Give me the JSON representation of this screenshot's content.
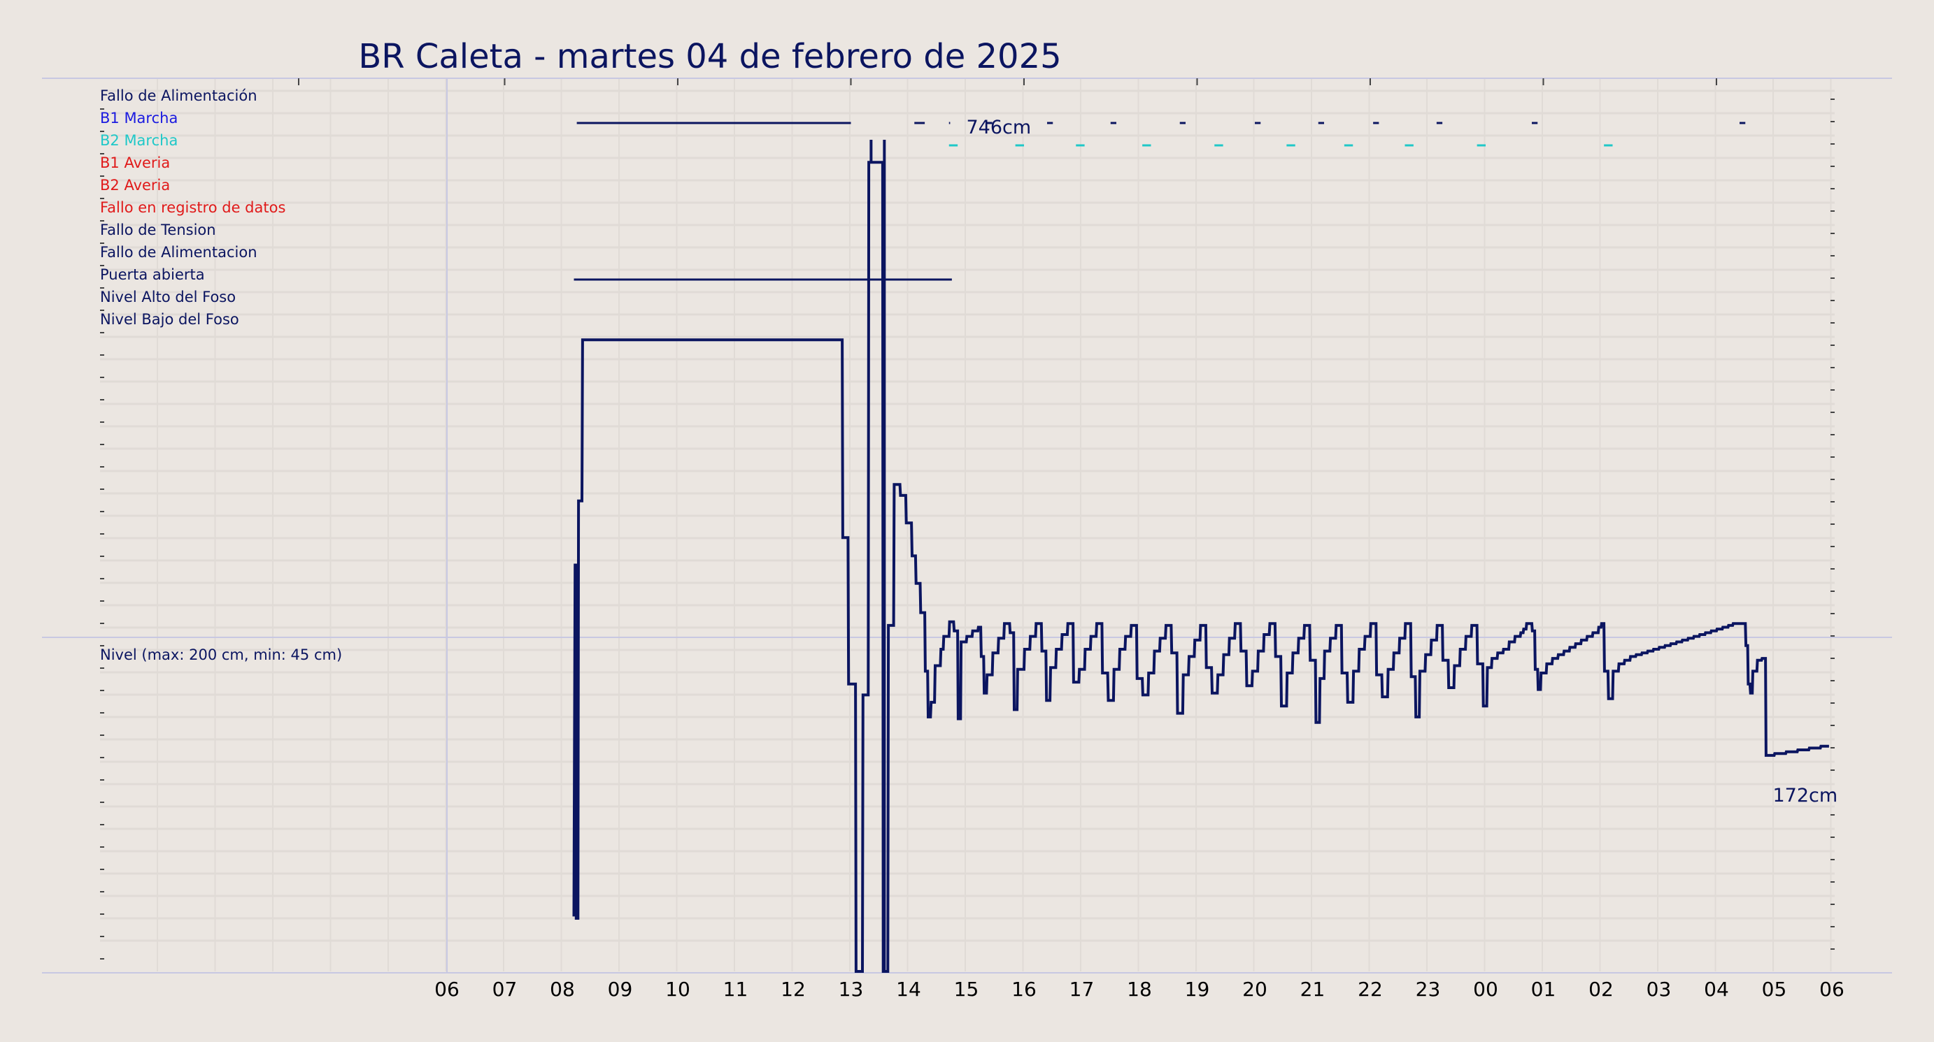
{
  "colors": {
    "background": "#ebe6e1",
    "grid": "#e0dbd6",
    "frame": "#c8c8e2",
    "line": "#0b1560",
    "navy": "#0b1560",
    "blue": "#1a1ae0",
    "cyan": "#1fc8c8",
    "red": "#e01a1a"
  },
  "chart_data": {
    "type": "line",
    "title": "BR Caleta   -   martes 04 de febrero de 2025",
    "x_ticks": [
      "06",
      "07",
      "08",
      "09",
      "10",
      "11",
      "12",
      "13",
      "14",
      "15",
      "16",
      "17",
      "18",
      "19",
      "20",
      "21",
      "22",
      "23",
      "00",
      "01",
      "02",
      "03",
      "04",
      "05",
      "06"
    ],
    "x_range_hours": [
      0,
      30
    ],
    "status_labels": [
      {
        "text": "Fallo de Alimentación",
        "color": "navy"
      },
      {
        "text": "B1 Marcha",
        "color": "blue"
      },
      {
        "text": "B2 Marcha",
        "color": "cyan"
      },
      {
        "text": "B1 Averia",
        "color": "red"
      },
      {
        "text": "B2 Averia",
        "color": "red"
      },
      {
        "text": "Fallo en registro de datos",
        "color": "red"
      },
      {
        "text": "Fallo de Tension",
        "color": "navy"
      },
      {
        "text": "Fallo de Alimentacion",
        "color": "navy"
      },
      {
        "text": "Puerta abierta",
        "color": "navy"
      },
      {
        "text": "Nivel Alto del Foso",
        "color": "navy"
      },
      {
        "text": "Nivel Bajo del Foso",
        "color": "navy"
      }
    ],
    "level_label": "Nivel (max: 200 cm, min: 45 cm)",
    "annotations": [
      {
        "text": "746cm",
        "x": 13.0
      },
      {
        "text": "172cm",
        "x": 29.0
      }
    ],
    "b1_marcha_runs": [
      [
        8.25,
        13.0
      ],
      [
        14.1,
        14.28
      ],
      [
        14.7,
        14.72
      ],
      [
        15.35,
        15.45
      ],
      [
        16.4,
        16.5
      ],
      [
        17.5,
        17.6
      ],
      [
        18.7,
        18.8
      ],
      [
        20.0,
        20.1
      ],
      [
        21.1,
        21.2
      ],
      [
        22.05,
        22.15
      ],
      [
        23.15,
        23.25
      ],
      [
        24.8,
        24.9
      ],
      [
        28.4,
        28.5
      ]
    ],
    "b2_marcha_runs": [
      [
        14.7,
        14.85
      ],
      [
        15.85,
        16.0
      ],
      [
        16.9,
        17.05
      ],
      [
        18.05,
        18.2
      ],
      [
        19.3,
        19.45
      ],
      [
        20.55,
        20.7
      ],
      [
        21.55,
        21.7
      ],
      [
        22.6,
        22.75
      ],
      [
        23.85,
        24.0
      ],
      [
        26.05,
        26.2
      ]
    ],
    "puerta_abierta_run": [
      8.2,
      14.75
    ],
    "level_series": [
      [
        8.2,
        30
      ],
      [
        8.22,
        222
      ],
      [
        8.23,
        222
      ],
      [
        8.24,
        29
      ],
      [
        8.27,
        29
      ],
      [
        8.28,
        257
      ],
      [
        8.34,
        257
      ],
      [
        8.35,
        345
      ],
      [
        12.85,
        345
      ],
      [
        12.86,
        237
      ],
      [
        12.95,
        237
      ],
      [
        12.96,
        157
      ],
      [
        13.08,
        157
      ],
      [
        13.09,
        0
      ],
      [
        13.2,
        0
      ],
      [
        13.21,
        151
      ],
      [
        13.3,
        151
      ],
      [
        13.31,
        442
      ],
      [
        13.35,
        442
      ],
      [
        13.36,
        442
      ],
      [
        13.55,
        442
      ],
      [
        13.56,
        0
      ],
      [
        13.64,
        0
      ],
      [
        13.65,
        189
      ],
      [
        13.74,
        189
      ],
      [
        13.75,
        266
      ],
      [
        13.85,
        266
      ],
      [
        13.86,
        260
      ],
      [
        13.95,
        260
      ],
      [
        13.96,
        245
      ],
      [
        14.05,
        245
      ],
      [
        14.06,
        227
      ],
      [
        14.12,
        227
      ],
      [
        14.13,
        212
      ],
      [
        14.2,
        212
      ],
      [
        14.21,
        196
      ],
      [
        14.28,
        196
      ],
      [
        14.29,
        164
      ],
      [
        14.33,
        164
      ],
      [
        14.34,
        139
      ],
      [
        14.38,
        139
      ],
      [
        14.39,
        147
      ],
      [
        14.45,
        147
      ],
      [
        14.46,
        167
      ],
      [
        14.55,
        167
      ],
      [
        14.56,
        176
      ],
      [
        14.6,
        176
      ],
      [
        14.61,
        183
      ],
      [
        14.7,
        183
      ],
      [
        14.71,
        191
      ],
      [
        14.78,
        191
      ],
      [
        14.79,
        186
      ],
      [
        14.85,
        186
      ],
      [
        14.86,
        138
      ],
      [
        14.9,
        138
      ],
      [
        14.91,
        180
      ],
      [
        15.0,
        180
      ],
      [
        15.01,
        183
      ],
      [
        15.1,
        183
      ],
      [
        15.11,
        186
      ],
      [
        15.2,
        186
      ],
      [
        15.21,
        188
      ],
      [
        15.25,
        188
      ],
      [
        15.26,
        172
      ],
      [
        15.3,
        172
      ],
      [
        15.31,
        152
      ],
      [
        15.35,
        152
      ],
      [
        15.36,
        162
      ],
      [
        15.45,
        162
      ],
      [
        15.46,
        174
      ],
      [
        15.55,
        174
      ],
      [
        15.56,
        182
      ],
      [
        15.65,
        182
      ],
      [
        15.66,
        190
      ],
      [
        15.75,
        190
      ],
      [
        15.76,
        185
      ],
      [
        15.82,
        185
      ],
      [
        15.83,
        143
      ],
      [
        15.88,
        143
      ],
      [
        15.89,
        165
      ],
      [
        16.0,
        165
      ],
      [
        16.01,
        176
      ],
      [
        16.1,
        176
      ],
      [
        16.11,
        183
      ],
      [
        16.2,
        183
      ],
      [
        16.21,
        190
      ],
      [
        16.3,
        190
      ],
      [
        16.31,
        175
      ],
      [
        16.38,
        175
      ],
      [
        16.39,
        148
      ],
      [
        16.45,
        148
      ],
      [
        16.46,
        166
      ],
      [
        16.55,
        166
      ],
      [
        16.56,
        176
      ],
      [
        16.65,
        176
      ],
      [
        16.66,
        184
      ],
      [
        16.75,
        184
      ],
      [
        16.76,
        190
      ],
      [
        16.85,
        190
      ],
      [
        16.86,
        158
      ],
      [
        16.95,
        158
      ],
      [
        16.96,
        165
      ],
      [
        17.05,
        165
      ],
      [
        17.06,
        176
      ],
      [
        17.15,
        176
      ],
      [
        17.16,
        183
      ],
      [
        17.25,
        183
      ],
      [
        17.26,
        190
      ],
      [
        17.35,
        190
      ],
      [
        17.36,
        163
      ],
      [
        17.45,
        163
      ],
      [
        17.46,
        148
      ],
      [
        17.55,
        148
      ],
      [
        17.56,
        165
      ],
      [
        17.65,
        165
      ],
      [
        17.66,
        176
      ],
      [
        17.75,
        176
      ],
      [
        17.76,
        183
      ],
      [
        17.85,
        183
      ],
      [
        17.86,
        189
      ],
      [
        17.95,
        189
      ],
      [
        17.96,
        160
      ],
      [
        18.05,
        160
      ],
      [
        18.06,
        151
      ],
      [
        18.15,
        151
      ],
      [
        18.16,
        163
      ],
      [
        18.25,
        163
      ],
      [
        18.26,
        175
      ],
      [
        18.35,
        175
      ],
      [
        18.36,
        182
      ],
      [
        18.45,
        182
      ],
      [
        18.46,
        189
      ],
      [
        18.55,
        189
      ],
      [
        18.56,
        174
      ],
      [
        18.65,
        174
      ],
      [
        18.66,
        141
      ],
      [
        18.75,
        141
      ],
      [
        18.76,
        162
      ],
      [
        18.85,
        162
      ],
      [
        18.86,
        172
      ],
      [
        18.95,
        172
      ],
      [
        18.96,
        181
      ],
      [
        19.05,
        181
      ],
      [
        19.06,
        189
      ],
      [
        19.15,
        189
      ],
      [
        19.16,
        166
      ],
      [
        19.25,
        166
      ],
      [
        19.26,
        152
      ],
      [
        19.35,
        152
      ],
      [
        19.36,
        162
      ],
      [
        19.45,
        162
      ],
      [
        19.46,
        173
      ],
      [
        19.55,
        173
      ],
      [
        19.56,
        182
      ],
      [
        19.65,
        182
      ],
      [
        19.66,
        190
      ],
      [
        19.75,
        190
      ],
      [
        19.76,
        175
      ],
      [
        19.85,
        175
      ],
      [
        19.86,
        156
      ],
      [
        19.95,
        156
      ],
      [
        19.96,
        164
      ],
      [
        20.05,
        164
      ],
      [
        20.06,
        175
      ],
      [
        20.15,
        175
      ],
      [
        20.16,
        184
      ],
      [
        20.25,
        184
      ],
      [
        20.26,
        190
      ],
      [
        20.35,
        190
      ],
      [
        20.36,
        172
      ],
      [
        20.45,
        172
      ],
      [
        20.46,
        145
      ],
      [
        20.55,
        145
      ],
      [
        20.56,
        163
      ],
      [
        20.65,
        163
      ],
      [
        20.66,
        174
      ],
      [
        20.75,
        174
      ],
      [
        20.76,
        182
      ],
      [
        20.85,
        182
      ],
      [
        20.86,
        189
      ],
      [
        20.95,
        189
      ],
      [
        20.96,
        170
      ],
      [
        21.05,
        170
      ],
      [
        21.06,
        136
      ],
      [
        21.12,
        136
      ],
      [
        21.13,
        160
      ],
      [
        21.2,
        160
      ],
      [
        21.21,
        175
      ],
      [
        21.3,
        175
      ],
      [
        21.31,
        182
      ],
      [
        21.4,
        182
      ],
      [
        21.41,
        189
      ],
      [
        21.5,
        189
      ],
      [
        21.51,
        163
      ],
      [
        21.6,
        163
      ],
      [
        21.61,
        147
      ],
      [
        21.7,
        147
      ],
      [
        21.71,
        164
      ],
      [
        21.8,
        164
      ],
      [
        21.81,
        176
      ],
      [
        21.9,
        176
      ],
      [
        21.91,
        183
      ],
      [
        22.0,
        183
      ],
      [
        22.01,
        190
      ],
      [
        22.1,
        190
      ],
      [
        22.11,
        162
      ],
      [
        22.2,
        162
      ],
      [
        22.21,
        150
      ],
      [
        22.3,
        150
      ],
      [
        22.31,
        165
      ],
      [
        22.4,
        165
      ],
      [
        22.41,
        174
      ],
      [
        22.5,
        174
      ],
      [
        22.51,
        182
      ],
      [
        22.6,
        182
      ],
      [
        22.61,
        190
      ],
      [
        22.7,
        190
      ],
      [
        22.71,
        161
      ],
      [
        22.78,
        161
      ],
      [
        22.79,
        139
      ],
      [
        22.85,
        139
      ],
      [
        22.86,
        164
      ],
      [
        22.95,
        164
      ],
      [
        22.96,
        173
      ],
      [
        23.05,
        173
      ],
      [
        23.06,
        181
      ],
      [
        23.15,
        181
      ],
      [
        23.16,
        189
      ],
      [
        23.25,
        189
      ],
      [
        23.26,
        170
      ],
      [
        23.35,
        170
      ],
      [
        23.36,
        155
      ],
      [
        23.45,
        155
      ],
      [
        23.46,
        167
      ],
      [
        23.55,
        167
      ],
      [
        23.56,
        176
      ],
      [
        23.65,
        176
      ],
      [
        23.66,
        183
      ],
      [
        23.75,
        183
      ],
      [
        23.76,
        189
      ],
      [
        23.85,
        189
      ],
      [
        23.86,
        168
      ],
      [
        23.95,
        168
      ],
      [
        23.96,
        145
      ],
      [
        24.02,
        145
      ],
      [
        24.03,
        166
      ],
      [
        24.1,
        166
      ],
      [
        24.11,
        171
      ],
      [
        24.2,
        171
      ],
      [
        24.21,
        174
      ],
      [
        24.3,
        174
      ],
      [
        24.31,
        176
      ],
      [
        24.4,
        176
      ],
      [
        24.41,
        180
      ],
      [
        24.5,
        180
      ],
      [
        24.51,
        183
      ],
      [
        24.6,
        183
      ],
      [
        24.61,
        185
      ],
      [
        24.65,
        185
      ],
      [
        24.66,
        187
      ],
      [
        24.7,
        187
      ],
      [
        24.71,
        190
      ],
      [
        24.8,
        190
      ],
      [
        24.81,
        186
      ],
      [
        24.85,
        186
      ],
      [
        24.86,
        165
      ],
      [
        24.9,
        165
      ],
      [
        24.91,
        154
      ],
      [
        24.95,
        154
      ],
      [
        24.96,
        163
      ],
      [
        25.05,
        163
      ],
      [
        25.06,
        168
      ],
      [
        25.15,
        168
      ],
      [
        25.16,
        171
      ],
      [
        25.25,
        171
      ],
      [
        25.26,
        173
      ],
      [
        25.35,
        173
      ],
      [
        25.36,
        175
      ],
      [
        25.45,
        175
      ],
      [
        25.46,
        177
      ],
      [
        25.55,
        177
      ],
      [
        25.56,
        179
      ],
      [
        25.65,
        179
      ],
      [
        25.66,
        181
      ],
      [
        25.75,
        181
      ],
      [
        25.76,
        183
      ],
      [
        25.85,
        183
      ],
      [
        25.86,
        185
      ],
      [
        25.95,
        185
      ],
      [
        25.96,
        188
      ],
      [
        26.0,
        188
      ],
      [
        26.01,
        190
      ],
      [
        26.05,
        190
      ],
      [
        26.06,
        164
      ],
      [
        26.12,
        164
      ],
      [
        26.13,
        149
      ],
      [
        26.2,
        149
      ],
      [
        26.21,
        164
      ],
      [
        26.3,
        164
      ],
      [
        26.31,
        168
      ],
      [
        26.4,
        168
      ],
      [
        26.41,
        170
      ],
      [
        26.5,
        170
      ],
      [
        26.51,
        172
      ],
      [
        26.6,
        172
      ],
      [
        26.61,
        173
      ],
      [
        26.7,
        173
      ],
      [
        26.71,
        174
      ],
      [
        26.8,
        174
      ],
      [
        26.81,
        175
      ],
      [
        26.9,
        175
      ],
      [
        26.91,
        176
      ],
      [
        27.0,
        176
      ],
      [
        27.01,
        177
      ],
      [
        27.1,
        177
      ],
      [
        27.11,
        178
      ],
      [
        27.2,
        178
      ],
      [
        27.21,
        179
      ],
      [
        27.3,
        179
      ],
      [
        27.31,
        180
      ],
      [
        27.4,
        180
      ],
      [
        27.41,
        181
      ],
      [
        27.5,
        181
      ],
      [
        27.51,
        182
      ],
      [
        27.6,
        182
      ],
      [
        27.61,
        183
      ],
      [
        27.7,
        183
      ],
      [
        27.71,
        184
      ],
      [
        27.8,
        184
      ],
      [
        27.81,
        185
      ],
      [
        27.9,
        185
      ],
      [
        27.91,
        186
      ],
      [
        28.0,
        186
      ],
      [
        28.01,
        187
      ],
      [
        28.1,
        187
      ],
      [
        28.11,
        188
      ],
      [
        28.2,
        188
      ],
      [
        28.21,
        189
      ],
      [
        28.28,
        189
      ],
      [
        28.29,
        190
      ],
      [
        28.5,
        190
      ],
      [
        28.51,
        178
      ],
      [
        28.54,
        178
      ],
      [
        28.55,
        157
      ],
      [
        28.58,
        157
      ],
      [
        28.59,
        152
      ],
      [
        28.62,
        152
      ],
      [
        28.63,
        164
      ],
      [
        28.7,
        164
      ],
      [
        28.71,
        170
      ],
      [
        28.78,
        170
      ],
      [
        28.79,
        171
      ],
      [
        28.85,
        171
      ],
      [
        28.86,
        118
      ],
      [
        29.0,
        118
      ],
      [
        29.01,
        119
      ],
      [
        29.2,
        119
      ],
      [
        29.21,
        120
      ],
      [
        29.4,
        120
      ],
      [
        29.41,
        121
      ],
      [
        29.6,
        121
      ],
      [
        29.61,
        122
      ],
      [
        29.8,
        122
      ],
      [
        29.81,
        123
      ],
      [
        29.95,
        123
      ]
    ]
  }
}
